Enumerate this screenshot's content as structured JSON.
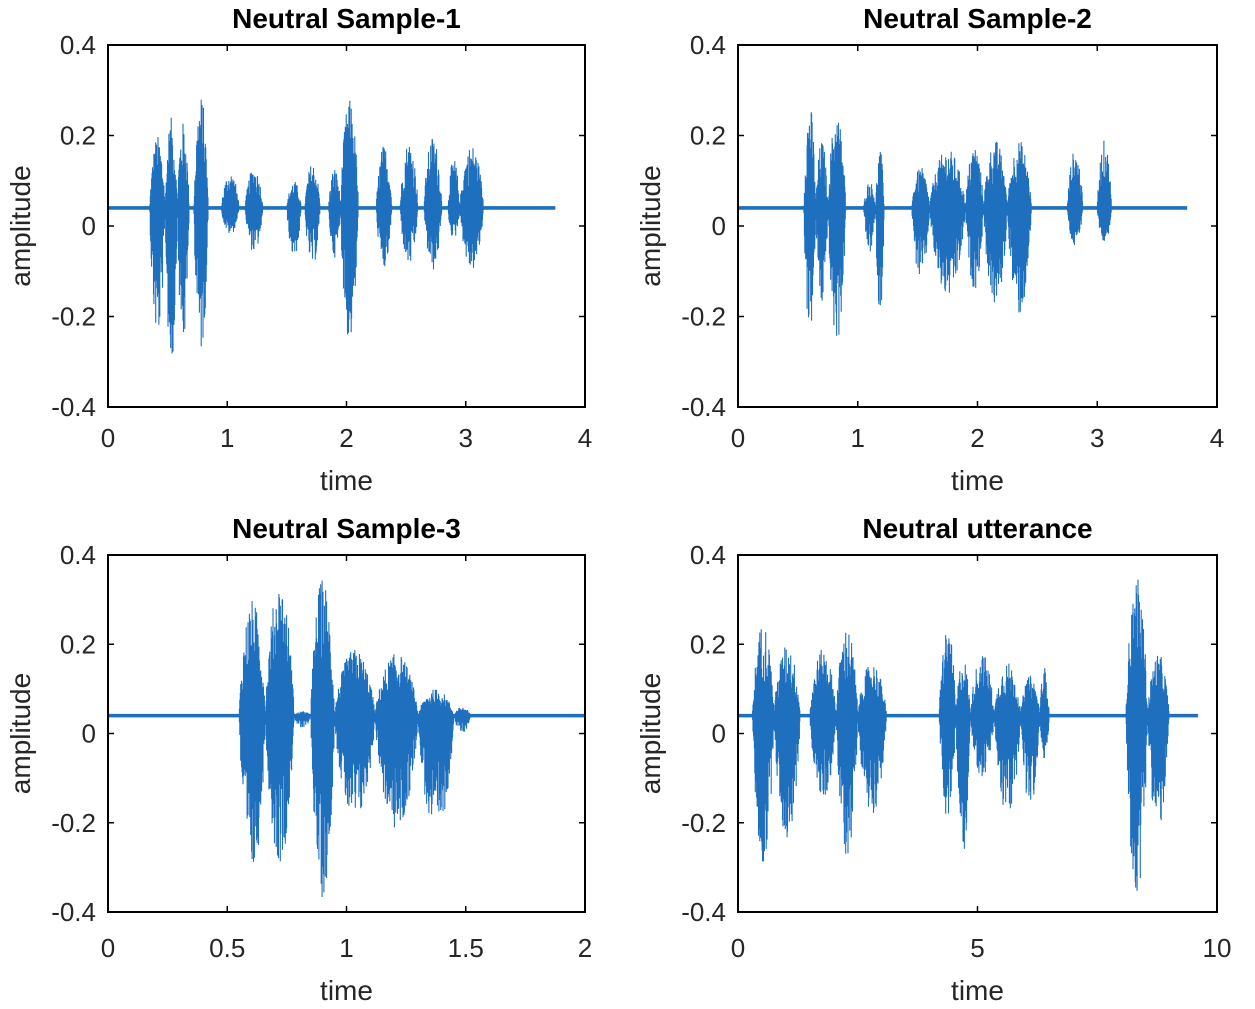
{
  "figure": {
    "background": "#ffffff",
    "line_color": "#1f6fbf",
    "axis_color": "#000000"
  },
  "chart_data": [
    {
      "type": "line",
      "title": "Neutral Sample-1",
      "xlabel": "time",
      "ylabel": "amplitude",
      "xlim": [
        0,
        4
      ],
      "ylim": [
        -0.4,
        0.4
      ],
      "xticks": [
        0,
        1,
        2,
        3,
        4
      ],
      "xtick_labels": [
        "0",
        "1",
        "2",
        "3",
        "4"
      ],
      "yticks": [
        0.4,
        0.2,
        0,
        -0.2,
        -0.4
      ],
      "ytick_labels": [
        "0.4",
        "0.2",
        "0",
        "-0.2",
        "-0.4"
      ],
      "signal_end": 3.75,
      "baseline": 0.04,
      "bursts": [
        {
          "start": 0.35,
          "end": 0.48,
          "peak": 0.2,
          "trough": -0.25
        },
        {
          "start": 0.48,
          "end": 0.58,
          "peak": 0.24,
          "trough": -0.32
        },
        {
          "start": 0.58,
          "end": 0.68,
          "peak": 0.23,
          "trough": -0.27
        },
        {
          "start": 0.72,
          "end": 0.84,
          "peak": 0.29,
          "trough": -0.28
        },
        {
          "start": 0.95,
          "end": 1.1,
          "peak": 0.12,
          "trough": -0.02
        },
        {
          "start": 1.15,
          "end": 1.3,
          "peak": 0.13,
          "trough": -0.06
        },
        {
          "start": 1.5,
          "end": 1.62,
          "peak": 0.1,
          "trough": -0.07
        },
        {
          "start": 1.65,
          "end": 1.78,
          "peak": 0.14,
          "trough": -0.09
        },
        {
          "start": 1.85,
          "end": 1.95,
          "peak": 0.13,
          "trough": -0.07
        },
        {
          "start": 1.95,
          "end": 2.1,
          "peak": 0.28,
          "trough": -0.26
        },
        {
          "start": 2.25,
          "end": 2.38,
          "peak": 0.18,
          "trough": -0.1
        },
        {
          "start": 2.45,
          "end": 2.6,
          "peak": 0.19,
          "trough": -0.09
        },
        {
          "start": 2.65,
          "end": 2.8,
          "peak": 0.2,
          "trough": -0.1
        },
        {
          "start": 2.85,
          "end": 2.95,
          "peak": 0.15,
          "trough": -0.03
        },
        {
          "start": 2.95,
          "end": 3.15,
          "peak": 0.18,
          "trough": -0.1
        }
      ]
    },
    {
      "type": "line",
      "title": "Neutral Sample-2",
      "xlabel": "time",
      "ylabel": "amplitude",
      "xlim": [
        0,
        4
      ],
      "ylim": [
        -0.4,
        0.4
      ],
      "xticks": [
        0,
        1,
        2,
        3,
        4
      ],
      "xtick_labels": [
        "0",
        "1",
        "2",
        "3",
        "4"
      ],
      "yticks": [
        0.4,
        0.2,
        0,
        -0.2,
        -0.4
      ],
      "ytick_labels": [
        "0.4",
        "0.2",
        "0",
        "-0.2",
        "-0.4"
      ],
      "signal_end": 3.75,
      "baseline": 0.04,
      "bursts": [
        {
          "start": 0.55,
          "end": 0.65,
          "peak": 0.27,
          "trough": -0.24
        },
        {
          "start": 0.65,
          "end": 0.75,
          "peak": 0.19,
          "trough": -0.18
        },
        {
          "start": 0.75,
          "end": 0.9,
          "peak": 0.25,
          "trough": -0.26
        },
        {
          "start": 1.05,
          "end": 1.15,
          "peak": 0.1,
          "trough": -0.06
        },
        {
          "start": 1.15,
          "end": 1.22,
          "peak": 0.17,
          "trough": -0.2
        },
        {
          "start": 1.45,
          "end": 1.6,
          "peak": 0.13,
          "trough": -0.12
        },
        {
          "start": 1.6,
          "end": 1.9,
          "peak": 0.17,
          "trough": -0.16
        },
        {
          "start": 1.9,
          "end": 2.05,
          "peak": 0.18,
          "trough": -0.14
        },
        {
          "start": 2.05,
          "end": 2.25,
          "peak": 0.19,
          "trough": -0.18
        },
        {
          "start": 2.25,
          "end": 2.45,
          "peak": 0.19,
          "trough": -0.2
        },
        {
          "start": 2.75,
          "end": 2.88,
          "peak": 0.17,
          "trough": -0.05
        },
        {
          "start": 3.0,
          "end": 3.12,
          "peak": 0.19,
          "trough": -0.04
        }
      ]
    },
    {
      "type": "line",
      "title": "Neutral Sample-3",
      "xlabel": "time",
      "ylabel": "amplitude",
      "xlim": [
        0,
        2
      ],
      "ylim": [
        -0.4,
        0.4
      ],
      "xticks": [
        0,
        0.5,
        1,
        1.5,
        2
      ],
      "xtick_labels": [
        "0",
        "0.5",
        "1",
        "1.5",
        "2"
      ],
      "yticks": [
        0.4,
        0.2,
        0,
        -0.2,
        -0.4
      ],
      "ytick_labels": [
        "0.4",
        "0.2",
        "0",
        "-0.2",
        "-0.4"
      ],
      "signal_end": 2.0,
      "baseline": 0.04,
      "bursts": [
        {
          "start": 0.55,
          "end": 0.66,
          "peak": 0.3,
          "trough": -0.32
        },
        {
          "start": 0.66,
          "end": 0.78,
          "peak": 0.34,
          "trough": -0.29
        },
        {
          "start": 0.78,
          "end": 0.85,
          "peak": 0.05,
          "trough": 0.01
        },
        {
          "start": 0.85,
          "end": 0.95,
          "peak": 0.35,
          "trough": -0.37
        },
        {
          "start": 0.95,
          "end": 1.12,
          "peak": 0.19,
          "trough": -0.2
        },
        {
          "start": 1.12,
          "end": 1.3,
          "peak": 0.18,
          "trough": -0.22
        },
        {
          "start": 1.3,
          "end": 1.45,
          "peak": 0.1,
          "trough": -0.23
        },
        {
          "start": 1.45,
          "end": 1.52,
          "peak": 0.06,
          "trough": 0.0
        }
      ]
    },
    {
      "type": "line",
      "title": "Neutral utterance",
      "xlabel": "time",
      "ylabel": "amplitude",
      "xlim": [
        0,
        10
      ],
      "ylim": [
        -0.4,
        0.4
      ],
      "xticks": [
        0,
        5,
        10
      ],
      "xtick_labels": [
        "0",
        "5",
        "10"
      ],
      "yticks": [
        0.4,
        0.2,
        0,
        -0.2,
        -0.4
      ],
      "ytick_labels": [
        "0.4",
        "0.2",
        "0",
        "-0.2",
        "-0.4"
      ],
      "signal_end": 9.6,
      "baseline": 0.04,
      "bursts": [
        {
          "start": 0.3,
          "end": 0.75,
          "peak": 0.25,
          "trough": -0.3
        },
        {
          "start": 0.75,
          "end": 1.3,
          "peak": 0.2,
          "trough": -0.24
        },
        {
          "start": 1.5,
          "end": 2.05,
          "peak": 0.19,
          "trough": -0.15
        },
        {
          "start": 2.05,
          "end": 2.5,
          "peak": 0.24,
          "trough": -0.28
        },
        {
          "start": 2.5,
          "end": 3.1,
          "peak": 0.16,
          "trough": -0.18
        },
        {
          "start": 4.2,
          "end": 4.55,
          "peak": 0.24,
          "trough": -0.19
        },
        {
          "start": 4.55,
          "end": 4.85,
          "peak": 0.17,
          "trough": -0.27
        },
        {
          "start": 4.85,
          "end": 5.35,
          "peak": 0.18,
          "trough": -0.1
        },
        {
          "start": 5.35,
          "end": 5.9,
          "peak": 0.16,
          "trough": -0.19
        },
        {
          "start": 5.9,
          "end": 6.3,
          "peak": 0.13,
          "trough": -0.17
        },
        {
          "start": 6.3,
          "end": 6.5,
          "peak": 0.15,
          "trough": -0.06
        },
        {
          "start": 8.1,
          "end": 8.55,
          "peak": 0.35,
          "trough": -0.37
        },
        {
          "start": 8.55,
          "end": 9.0,
          "peak": 0.18,
          "trough": -0.22
        }
      ]
    }
  ]
}
